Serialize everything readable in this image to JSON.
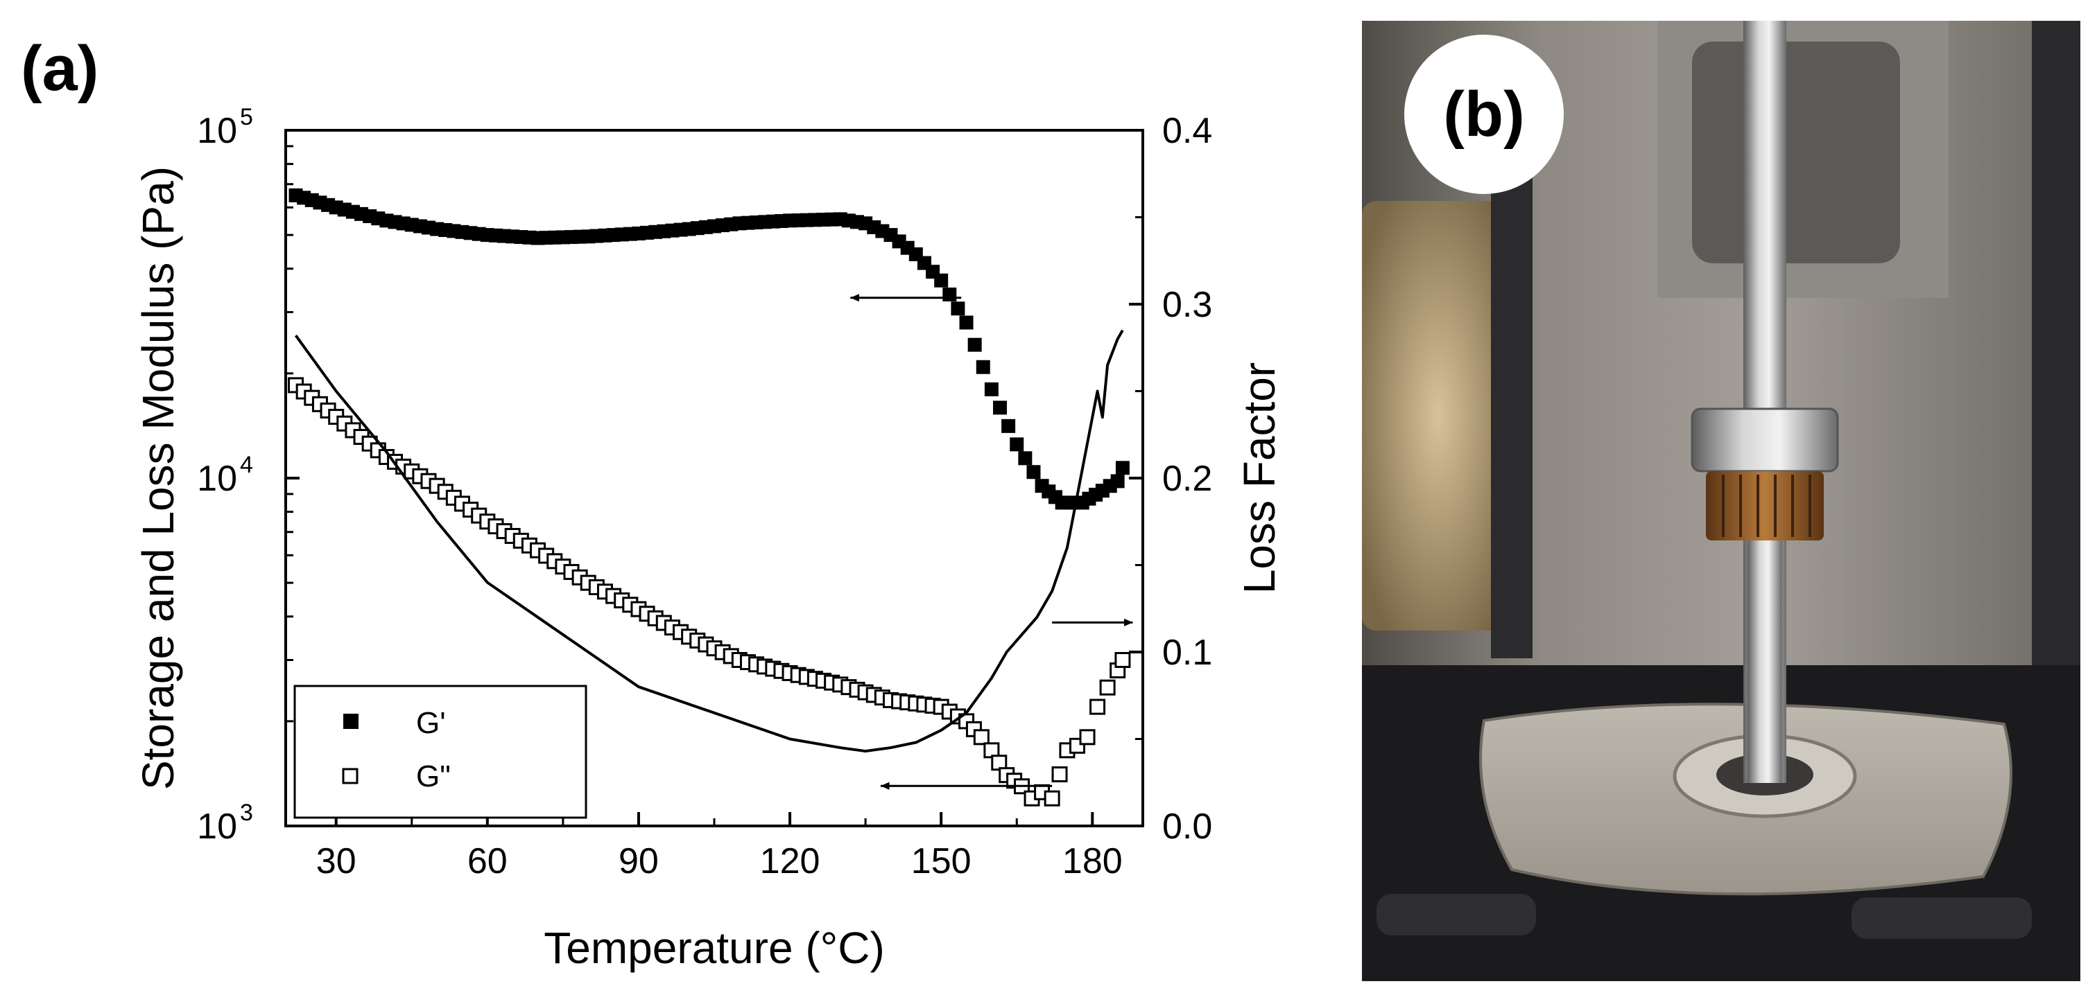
{
  "chart_data": [
    {
      "panel_label": "(a)",
      "type": "scatter",
      "xlabel": "Temperature (°C)",
      "ylabel_left": "Storage and Loss Modulus (Pa)",
      "ylabel_right": "Loss Factor",
      "xlim": [
        20,
        190
      ],
      "ylim_left": [
        1000,
        100000
      ],
      "ylim_left_scale": "log",
      "ylim_right": [
        0.0,
        0.4
      ],
      "x_ticks": [
        30,
        60,
        90,
        120,
        150,
        180
      ],
      "y_left_ticks": [
        {
          "value": 1000,
          "base": "10",
          "exp": "3"
        },
        {
          "value": 10000,
          "base": "10",
          "exp": "4"
        },
        {
          "value": 100000,
          "base": "10",
          "exp": "5"
        }
      ],
      "y_right_ticks": [
        "0.0",
        "0.1",
        "0.2",
        "0.3",
        "0.4"
      ],
      "legend_position": "bottom-left",
      "series": [
        {
          "name": "G'",
          "axis": "left",
          "marker": "filled-square",
          "color": "#000000",
          "x": [
            22,
            30,
            40,
            50,
            60,
            70,
            80,
            90,
            100,
            110,
            120,
            130,
            135,
            140,
            145,
            150,
            155,
            160,
            165,
            170,
            174,
            178,
            182,
            185,
            186
          ],
          "y": [
            65000,
            60000,
            55000,
            52000,
            50000,
            49000,
            49500,
            50500,
            52000,
            54000,
            55000,
            55500,
            54000,
            50000,
            44000,
            37000,
            28000,
            18000,
            12500,
            9500,
            8500,
            8500,
            9200,
            9800,
            10700
          ]
        },
        {
          "name": "G\"",
          "axis": "left",
          "marker": "open-square",
          "color": "#000000",
          "x": [
            22,
            30,
            40,
            50,
            60,
            70,
            80,
            90,
            100,
            110,
            120,
            130,
            140,
            150,
            155,
            158,
            160,
            163,
            166,
            168,
            170,
            172,
            175,
            177,
            179,
            181,
            183,
            185,
            186
          ],
          "y": [
            18500,
            15000,
            11500,
            9500,
            7500,
            6200,
            5000,
            4200,
            3500,
            3000,
            2750,
            2550,
            2300,
            2200,
            2000,
            1800,
            1650,
            1400,
            1300,
            1200,
            1250,
            1200,
            1650,
            1700,
            1800,
            2200,
            2500,
            2800,
            3000
          ]
        },
        {
          "name": "",
          "axis": "right",
          "marker": "line",
          "color": "#000000",
          "x": [
            22,
            30,
            40,
            50,
            60,
            70,
            80,
            90,
            100,
            110,
            120,
            130,
            135,
            140,
            145,
            150,
            155,
            160,
            163,
            166,
            169,
            172,
            175,
            176,
            177,
            179,
            181,
            182,
            183,
            185,
            186
          ],
          "y": [
            0.282,
            0.25,
            0.215,
            0.175,
            0.14,
            0.12,
            0.1,
            0.08,
            0.07,
            0.06,
            0.05,
            0.045,
            0.043,
            0.045,
            0.048,
            0.055,
            0.065,
            0.085,
            0.1,
            0.11,
            0.12,
            0.135,
            0.16,
            0.175,
            0.19,
            0.22,
            0.25,
            0.235,
            0.265,
            0.28,
            0.285
          ]
        }
      ],
      "annotations": [
        {
          "type": "arrow",
          "direction": "left",
          "axis": "left",
          "from": [
            154,
            33000
          ],
          "to": [
            132,
            33000
          ]
        },
        {
          "type": "arrow",
          "direction": "right",
          "axis": "right",
          "from": [
            172,
            0.117
          ],
          "to": [
            188,
            0.117
          ]
        },
        {
          "type": "arrow",
          "direction": "left",
          "axis": "right",
          "from": [
            172,
            0.023
          ],
          "to": [
            138,
            0.023
          ]
        }
      ]
    }
  ],
  "photo": {
    "panel_label": "(b)"
  }
}
